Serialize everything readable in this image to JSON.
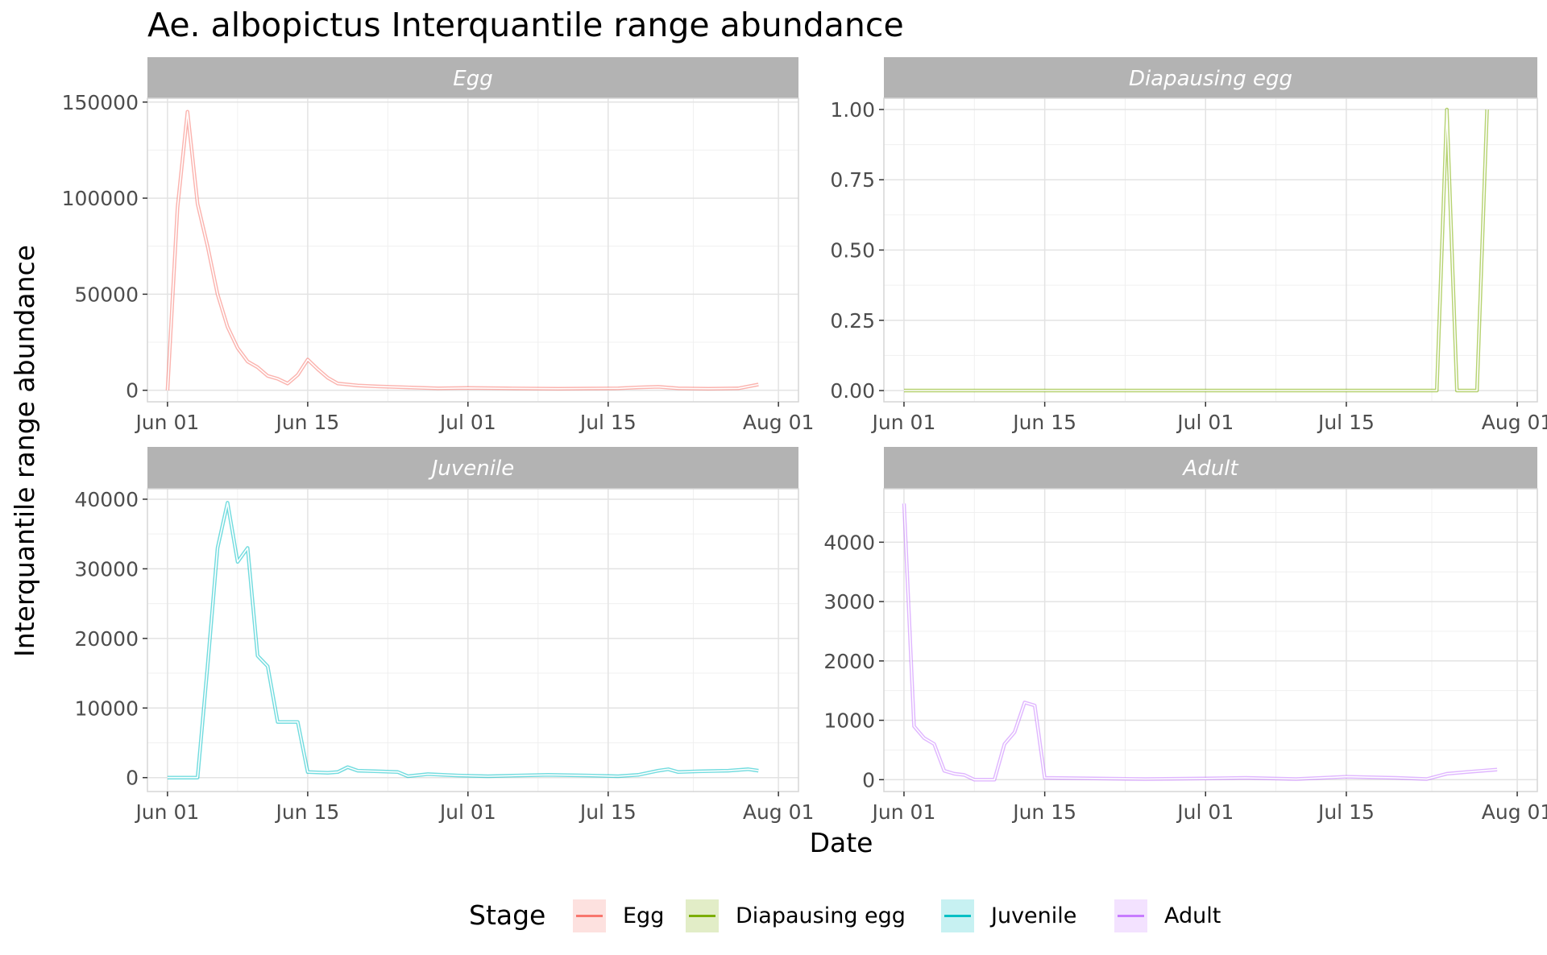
{
  "chart_data": {
    "type": "line",
    "title": "Ae. albopictus Interquantile range abundance",
    "xlabel": "Date",
    "ylabel": "Interquantile range abundance",
    "x_ticks": [
      "Jun 01",
      "Jun 15",
      "Jul 01",
      "Jul 15",
      "Aug 01"
    ],
    "grid": true,
    "legend": {
      "title": "Stage",
      "position": "bottom",
      "entries": [
        "Egg",
        "Diapausing egg",
        "Juvenile",
        "Adult"
      ]
    },
    "panels": [
      {
        "name": "Egg",
        "color": "#F8766D",
        "ylim": [
          -6000,
          152000
        ],
        "y_ticks": [
          "0",
          "50000",
          "100000",
          "150000"
        ],
        "y_tick_values": [
          0,
          50000,
          100000,
          150000
        ],
        "x": [
          "2023-06-01",
          "2023-06-02",
          "2023-06-03",
          "2023-06-04",
          "2023-06-05",
          "2023-06-06",
          "2023-06-07",
          "2023-06-08",
          "2023-06-09",
          "2023-06-10",
          "2023-06-11",
          "2023-06-12",
          "2023-06-13",
          "2023-06-14",
          "2023-06-15",
          "2023-06-16",
          "2023-06-17",
          "2023-06-18",
          "2023-06-20",
          "2023-06-22",
          "2023-06-25",
          "2023-06-28",
          "2023-07-01",
          "2023-07-05",
          "2023-07-10",
          "2023-07-13",
          "2023-07-16",
          "2023-07-18",
          "2023-07-20",
          "2023-07-22",
          "2023-07-25",
          "2023-07-28",
          "2023-07-30"
        ],
        "values": [
          0,
          95000,
          145000,
          97000,
          75000,
          50000,
          33000,
          22000,
          15000,
          12000,
          7500,
          6000,
          3500,
          8000,
          16000,
          11000,
          6500,
          3500,
          2500,
          2000,
          1500,
          1000,
          1200,
          1000,
          800,
          900,
          1000,
          1500,
          1800,
          1000,
          800,
          1000,
          3000
        ]
      },
      {
        "name": "Diapausing egg",
        "color": "#7CAE00",
        "ylim": [
          -0.04,
          1.04
        ],
        "y_ticks": [
          "0.00",
          "0.25",
          "0.50",
          "0.75",
          "1.00"
        ],
        "y_tick_values": [
          0,
          0.25,
          0.5,
          0.75,
          1
        ],
        "x": [
          "2023-06-01",
          "2023-07-24",
          "2023-07-25",
          "2023-07-26",
          "2023-07-28",
          "2023-07-29"
        ],
        "values": [
          0,
          0,
          1,
          0,
          0,
          1
        ]
      },
      {
        "name": "Juvenile",
        "color": "#00BFC4",
        "ylim": [
          -2000,
          41500
        ],
        "y_ticks": [
          "0",
          "10000",
          "20000",
          "30000",
          "40000"
        ],
        "y_tick_values": [
          0,
          10000,
          20000,
          30000,
          40000
        ],
        "x": [
          "2023-06-01",
          "2023-06-02",
          "2023-06-03",
          "2023-06-04",
          "2023-06-05",
          "2023-06-06",
          "2023-06-07",
          "2023-06-08",
          "2023-06-09",
          "2023-06-10",
          "2023-06-11",
          "2023-06-12",
          "2023-06-13",
          "2023-06-14",
          "2023-06-15",
          "2023-06-17",
          "2023-06-18",
          "2023-06-19",
          "2023-06-20",
          "2023-06-22",
          "2023-06-24",
          "2023-06-25",
          "2023-06-27",
          "2023-06-30",
          "2023-07-03",
          "2023-07-06",
          "2023-07-09",
          "2023-07-13",
          "2023-07-16",
          "2023-07-18",
          "2023-07-20",
          "2023-07-21",
          "2023-07-22",
          "2023-07-24",
          "2023-07-27",
          "2023-07-29",
          "2023-07-30"
        ],
        "values": [
          0,
          0,
          0,
          0,
          16000,
          33000,
          39500,
          31000,
          33000,
          17500,
          16000,
          8000,
          8000,
          8000,
          800,
          700,
          800,
          1500,
          1000,
          900,
          800,
          200,
          500,
          300,
          200,
          300,
          400,
          300,
          200,
          400,
          1000,
          1200,
          800,
          900,
          1000,
          1200,
          1000
        ]
      },
      {
        "name": "Adult",
        "color": "#C77CFF",
        "ylim": [
          -200,
          4900
        ],
        "y_ticks": [
          "0",
          "1000",
          "2000",
          "3000",
          "4000"
        ],
        "y_tick_values": [
          0,
          1000,
          2000,
          3000,
          4000
        ],
        "x": [
          "2023-06-01",
          "2023-06-02",
          "2023-06-03",
          "2023-06-04",
          "2023-06-05",
          "2023-06-06",
          "2023-06-07",
          "2023-06-08",
          "2023-06-09",
          "2023-06-10",
          "2023-06-11",
          "2023-06-12",
          "2023-06-13",
          "2023-06-14",
          "2023-06-15",
          "2023-06-20",
          "2023-06-25",
          "2023-07-01",
          "2023-07-05",
          "2023-07-10",
          "2023-07-15",
          "2023-07-20",
          "2023-07-23",
          "2023-07-25",
          "2023-07-27",
          "2023-07-30"
        ],
        "values": [
          4650,
          900,
          700,
          600,
          150,
          100,
          80,
          0,
          0,
          0,
          600,
          800,
          1300,
          1250,
          30,
          20,
          10,
          20,
          30,
          10,
          50,
          30,
          10,
          100,
          130,
          170
        ]
      }
    ]
  }
}
